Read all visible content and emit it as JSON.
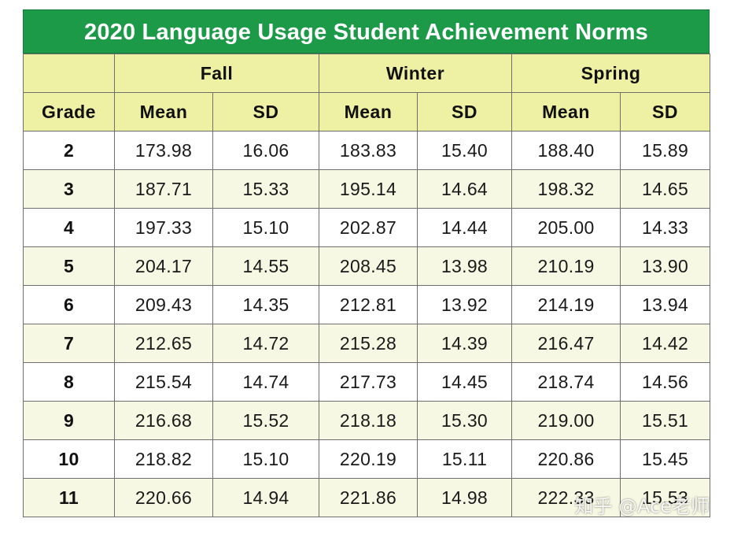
{
  "title": "2020 Language Usage Student Achievement Norms",
  "seasons": [
    "Fall",
    "Winter",
    "Spring"
  ],
  "columns": {
    "grade": "Grade",
    "mean": "Mean",
    "sd": "SD"
  },
  "rows": [
    {
      "grade": "2",
      "fall_mean": "173.98",
      "fall_sd": "16.06",
      "winter_mean": "183.83",
      "winter_sd": "15.40",
      "spring_mean": "188.40",
      "spring_sd": "15.89"
    },
    {
      "grade": "3",
      "fall_mean": "187.71",
      "fall_sd": "15.33",
      "winter_mean": "195.14",
      "winter_sd": "14.64",
      "spring_mean": "198.32",
      "spring_sd": "14.65"
    },
    {
      "grade": "4",
      "fall_mean": "197.33",
      "fall_sd": "15.10",
      "winter_mean": "202.87",
      "winter_sd": "14.44",
      "spring_mean": "205.00",
      "spring_sd": "14.33"
    },
    {
      "grade": "5",
      "fall_mean": "204.17",
      "fall_sd": "14.55",
      "winter_mean": "208.45",
      "winter_sd": "13.98",
      "spring_mean": "210.19",
      "spring_sd": "13.90"
    },
    {
      "grade": "6",
      "fall_mean": "209.43",
      "fall_sd": "14.35",
      "winter_mean": "212.81",
      "winter_sd": "13.92",
      "spring_mean": "214.19",
      "spring_sd": "13.94"
    },
    {
      "grade": "7",
      "fall_mean": "212.65",
      "fall_sd": "14.72",
      "winter_mean": "215.28",
      "winter_sd": "14.39",
      "spring_mean": "216.47",
      "spring_sd": "14.42"
    },
    {
      "grade": "8",
      "fall_mean": "215.54",
      "fall_sd": "14.74",
      "winter_mean": "217.73",
      "winter_sd": "14.45",
      "spring_mean": "218.74",
      "spring_sd": "14.56"
    },
    {
      "grade": "9",
      "fall_mean": "216.68",
      "fall_sd": "15.52",
      "winter_mean": "218.18",
      "winter_sd": "15.30",
      "spring_mean": "219.00",
      "spring_sd": "15.51"
    },
    {
      "grade": "10",
      "fall_mean": "218.82",
      "fall_sd": "15.10",
      "winter_mean": "220.19",
      "winter_sd": "15.11",
      "spring_mean": "220.86",
      "spring_sd": "15.45"
    },
    {
      "grade": "11",
      "fall_mean": "220.66",
      "fall_sd": "14.94",
      "winter_mean": "221.86",
      "winter_sd": "14.98",
      "spring_mean": "222.33",
      "spring_sd": "15.53"
    }
  ],
  "watermark": "知乎 @Ace老师",
  "colors": {
    "title_bg": "#1c9a48",
    "header_bg": "#eef0a4",
    "alt_row_bg": "#f7f8e4"
  }
}
